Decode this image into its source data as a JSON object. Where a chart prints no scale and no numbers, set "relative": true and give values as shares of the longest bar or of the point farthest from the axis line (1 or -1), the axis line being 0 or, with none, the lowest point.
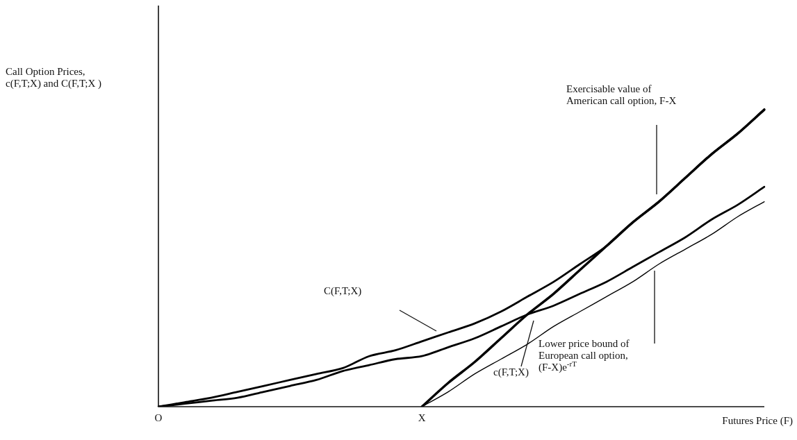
{
  "chart_data": {
    "type": "line",
    "relative": true,
    "xlabel": "Futures Price (F)",
    "categories": [
      "O",
      null,
      null,
      null,
      null,
      null,
      null,
      null,
      null,
      null,
      "X",
      null,
      null,
      null,
      null,
      null,
      null,
      null,
      null,
      null,
      null,
      null,
      null,
      null
    ],
    "grid": false,
    "legend": false,
    "marker": "none",
    "line_style": "solid",
    "series": [
      {
        "color": "#000000",
        "values": [
          null,
          null,
          null,
          null,
          null,
          null,
          null,
          null,
          null,
          null,
          0,
          0.08,
          0.15,
          0.23,
          0.31,
          0.38,
          0.46,
          0.54,
          0.62,
          0.69,
          0.77,
          0.85,
          0.92,
          1
        ]
      },
      {
        "color": "#000000",
        "values": [
          0,
          0.015,
          0.03,
          0.05,
          0.07,
          0.09,
          0.11,
          0.13,
          0.17,
          0.19,
          0.22,
          0.25,
          0.28,
          0.32,
          0.37,
          0.42,
          0.48,
          0.54,
          0.62,
          0.69,
          0.77,
          0.85,
          0.92,
          1
        ]
      },
      {
        "color": "#000000",
        "values": [
          0,
          0.01,
          0.02,
          0.03,
          0.05,
          0.07,
          0.09,
          0.12,
          0.14,
          0.16,
          0.17,
          0.2,
          0.23,
          0.27,
          0.31,
          0.34,
          0.38,
          0.42,
          0.47,
          0.52,
          0.57,
          0.63,
          0.68,
          0.74
        ]
      },
      {
        "color": "#000000",
        "values": [
          null,
          null,
          null,
          null,
          null,
          null,
          null,
          null,
          null,
          null,
          0,
          0.05,
          0.11,
          0.16,
          0.21,
          0.27,
          0.32,
          0.37,
          0.42,
          0.48,
          0.53,
          0.58,
          0.64,
          0.69
        ]
      }
    ],
    "annotations": [
      "Call Option Prices,\nc(F,T;X) and C(F,T;X )",
      "Exercisable value of\nAmerican call option, F-X",
      "C(F,T;X)",
      "c(F,T;X)",
      "Lower price bound of\nEuropean call option,\n(F-X)e$^{-rT}$"
    ]
  }
}
